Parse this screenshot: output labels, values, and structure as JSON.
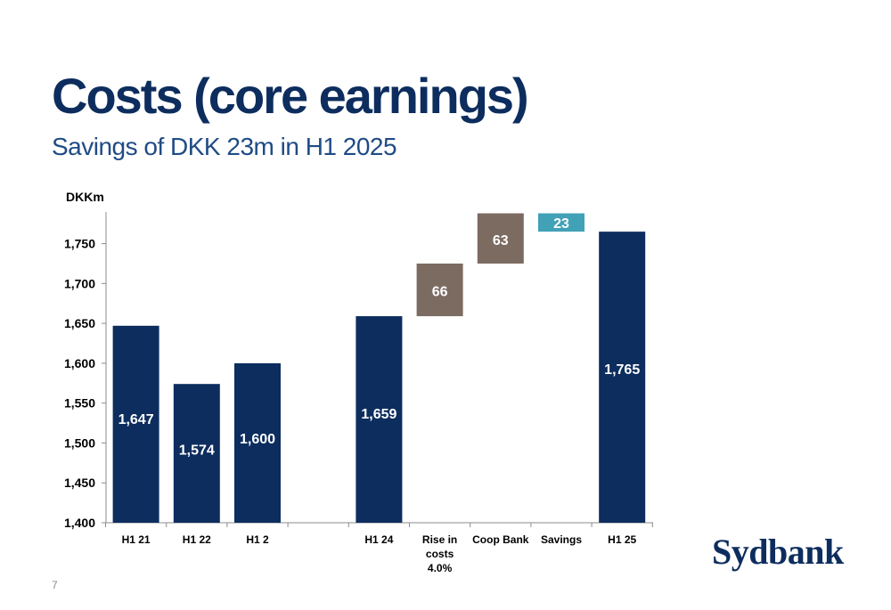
{
  "title": "Costs (core earnings)",
  "subtitle": "Savings of DKK 23m in H1 2025",
  "logo_text": "Sydbank",
  "page_number": "7",
  "colors": {
    "bar_primary": "#0d2d5e",
    "bar_increase": "#7c6b61",
    "bar_savings": "#41a1b7",
    "title": "#0d2d5e",
    "subtitle": "#1f4b86"
  },
  "chart_data": {
    "type": "bar",
    "subtype": "waterfall",
    "unit_label": "DKKm",
    "ylim": [
      1400,
      1790
    ],
    "yticks": [
      1400,
      1450,
      1500,
      1550,
      1600,
      1650,
      1700,
      1750
    ],
    "ytick_labels": [
      "1,400",
      "1,450",
      "1,500",
      "1,550",
      "1,600",
      "1,650",
      "1,700",
      "1,750"
    ],
    "grid": false,
    "legend": "none",
    "bars": [
      {
        "category": [
          "H1 21"
        ],
        "kind": "total",
        "start": 1400,
        "end": 1647,
        "label": "1,647"
      },
      {
        "category": [
          "H1 22"
        ],
        "kind": "total",
        "start": 1400,
        "end": 1574,
        "label": "1,574"
      },
      {
        "category": [
          "H1 2"
        ],
        "kind": "total",
        "start": 1400,
        "end": 1600,
        "label": "1,600"
      },
      {
        "category": [
          ""
        ],
        "kind": "empty"
      },
      {
        "category": [
          "H1 24"
        ],
        "kind": "total",
        "start": 1400,
        "end": 1659,
        "label": "1,659"
      },
      {
        "category": [
          "Rise in",
          "costs",
          "4.0%"
        ],
        "kind": "increase",
        "start": 1659,
        "end": 1725,
        "label": "66"
      },
      {
        "category": [
          "Coop  Bank"
        ],
        "kind": "increase",
        "start": 1725,
        "end": 1788,
        "label": "63"
      },
      {
        "category": [
          "Savings"
        ],
        "kind": "savings",
        "start": 1765,
        "end": 1788,
        "label": "23"
      },
      {
        "category": [
          "H1 25"
        ],
        "kind": "total",
        "start": 1400,
        "end": 1765,
        "label": "1,765"
      }
    ]
  }
}
